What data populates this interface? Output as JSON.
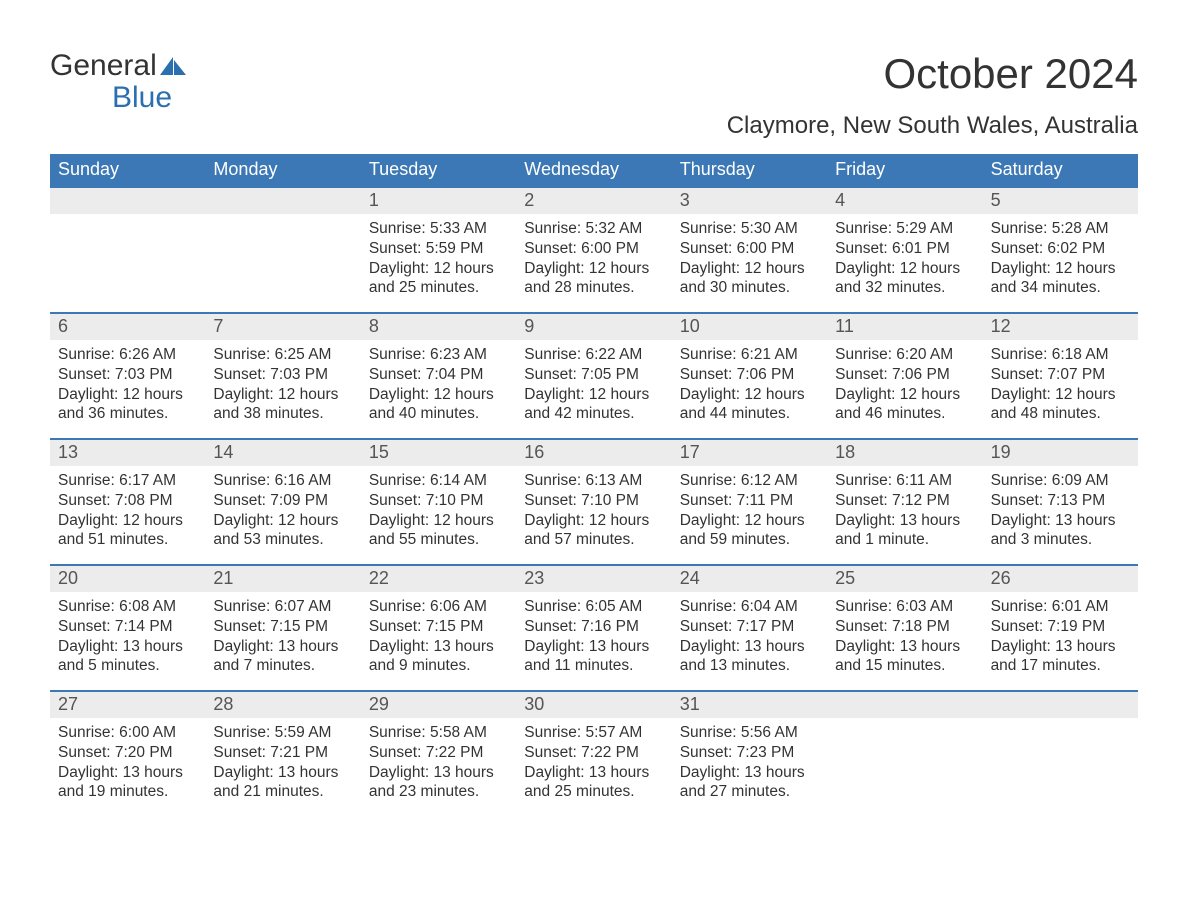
{
  "logo": {
    "word1": "General",
    "word2": "Blue",
    "icon_color": "#2c6fb0"
  },
  "title": "October 2024",
  "location": "Claymore, New South Wales, Australia",
  "colors": {
    "header_bg": "#3b78b5",
    "header_text": "#ffffff",
    "daynum_bg": "#ececec",
    "row_border": "#3b78b5",
    "body_text": "#333333",
    "accent": "#2c6fb0"
  },
  "days_of_week": [
    "Sunday",
    "Monday",
    "Tuesday",
    "Wednesday",
    "Thursday",
    "Friday",
    "Saturday"
  ],
  "weeks": [
    [
      null,
      null,
      {
        "n": "1",
        "sr": "Sunrise: 5:33 AM",
        "ss": "Sunset: 5:59 PM",
        "d1": "Daylight: 12 hours",
        "d2": "and 25 minutes."
      },
      {
        "n": "2",
        "sr": "Sunrise: 5:32 AM",
        "ss": "Sunset: 6:00 PM",
        "d1": "Daylight: 12 hours",
        "d2": "and 28 minutes."
      },
      {
        "n": "3",
        "sr": "Sunrise: 5:30 AM",
        "ss": "Sunset: 6:00 PM",
        "d1": "Daylight: 12 hours",
        "d2": "and 30 minutes."
      },
      {
        "n": "4",
        "sr": "Sunrise: 5:29 AM",
        "ss": "Sunset: 6:01 PM",
        "d1": "Daylight: 12 hours",
        "d2": "and 32 minutes."
      },
      {
        "n": "5",
        "sr": "Sunrise: 5:28 AM",
        "ss": "Sunset: 6:02 PM",
        "d1": "Daylight: 12 hours",
        "d2": "and 34 minutes."
      }
    ],
    [
      {
        "n": "6",
        "sr": "Sunrise: 6:26 AM",
        "ss": "Sunset: 7:03 PM",
        "d1": "Daylight: 12 hours",
        "d2": "and 36 minutes."
      },
      {
        "n": "7",
        "sr": "Sunrise: 6:25 AM",
        "ss": "Sunset: 7:03 PM",
        "d1": "Daylight: 12 hours",
        "d2": "and 38 minutes."
      },
      {
        "n": "8",
        "sr": "Sunrise: 6:23 AM",
        "ss": "Sunset: 7:04 PM",
        "d1": "Daylight: 12 hours",
        "d2": "and 40 minutes."
      },
      {
        "n": "9",
        "sr": "Sunrise: 6:22 AM",
        "ss": "Sunset: 7:05 PM",
        "d1": "Daylight: 12 hours",
        "d2": "and 42 minutes."
      },
      {
        "n": "10",
        "sr": "Sunrise: 6:21 AM",
        "ss": "Sunset: 7:06 PM",
        "d1": "Daylight: 12 hours",
        "d2": "and 44 minutes."
      },
      {
        "n": "11",
        "sr": "Sunrise: 6:20 AM",
        "ss": "Sunset: 7:06 PM",
        "d1": "Daylight: 12 hours",
        "d2": "and 46 minutes."
      },
      {
        "n": "12",
        "sr": "Sunrise: 6:18 AM",
        "ss": "Sunset: 7:07 PM",
        "d1": "Daylight: 12 hours",
        "d2": "and 48 minutes."
      }
    ],
    [
      {
        "n": "13",
        "sr": "Sunrise: 6:17 AM",
        "ss": "Sunset: 7:08 PM",
        "d1": "Daylight: 12 hours",
        "d2": "and 51 minutes."
      },
      {
        "n": "14",
        "sr": "Sunrise: 6:16 AM",
        "ss": "Sunset: 7:09 PM",
        "d1": "Daylight: 12 hours",
        "d2": "and 53 minutes."
      },
      {
        "n": "15",
        "sr": "Sunrise: 6:14 AM",
        "ss": "Sunset: 7:10 PM",
        "d1": "Daylight: 12 hours",
        "d2": "and 55 minutes."
      },
      {
        "n": "16",
        "sr": "Sunrise: 6:13 AM",
        "ss": "Sunset: 7:10 PM",
        "d1": "Daylight: 12 hours",
        "d2": "and 57 minutes."
      },
      {
        "n": "17",
        "sr": "Sunrise: 6:12 AM",
        "ss": "Sunset: 7:11 PM",
        "d1": "Daylight: 12 hours",
        "d2": "and 59 minutes."
      },
      {
        "n": "18",
        "sr": "Sunrise: 6:11 AM",
        "ss": "Sunset: 7:12 PM",
        "d1": "Daylight: 13 hours",
        "d2": "and 1 minute."
      },
      {
        "n": "19",
        "sr": "Sunrise: 6:09 AM",
        "ss": "Sunset: 7:13 PM",
        "d1": "Daylight: 13 hours",
        "d2": "and 3 minutes."
      }
    ],
    [
      {
        "n": "20",
        "sr": "Sunrise: 6:08 AM",
        "ss": "Sunset: 7:14 PM",
        "d1": "Daylight: 13 hours",
        "d2": "and 5 minutes."
      },
      {
        "n": "21",
        "sr": "Sunrise: 6:07 AM",
        "ss": "Sunset: 7:15 PM",
        "d1": "Daylight: 13 hours",
        "d2": "and 7 minutes."
      },
      {
        "n": "22",
        "sr": "Sunrise: 6:06 AM",
        "ss": "Sunset: 7:15 PM",
        "d1": "Daylight: 13 hours",
        "d2": "and 9 minutes."
      },
      {
        "n": "23",
        "sr": "Sunrise: 6:05 AM",
        "ss": "Sunset: 7:16 PM",
        "d1": "Daylight: 13 hours",
        "d2": "and 11 minutes."
      },
      {
        "n": "24",
        "sr": "Sunrise: 6:04 AM",
        "ss": "Sunset: 7:17 PM",
        "d1": "Daylight: 13 hours",
        "d2": "and 13 minutes."
      },
      {
        "n": "25",
        "sr": "Sunrise: 6:03 AM",
        "ss": "Sunset: 7:18 PM",
        "d1": "Daylight: 13 hours",
        "d2": "and 15 minutes."
      },
      {
        "n": "26",
        "sr": "Sunrise: 6:01 AM",
        "ss": "Sunset: 7:19 PM",
        "d1": "Daylight: 13 hours",
        "d2": "and 17 minutes."
      }
    ],
    [
      {
        "n": "27",
        "sr": "Sunrise: 6:00 AM",
        "ss": "Sunset: 7:20 PM",
        "d1": "Daylight: 13 hours",
        "d2": "and 19 minutes."
      },
      {
        "n": "28",
        "sr": "Sunrise: 5:59 AM",
        "ss": "Sunset: 7:21 PM",
        "d1": "Daylight: 13 hours",
        "d2": "and 21 minutes."
      },
      {
        "n": "29",
        "sr": "Sunrise: 5:58 AM",
        "ss": "Sunset: 7:22 PM",
        "d1": "Daylight: 13 hours",
        "d2": "and 23 minutes."
      },
      {
        "n": "30",
        "sr": "Sunrise: 5:57 AM",
        "ss": "Sunset: 7:22 PM",
        "d1": "Daylight: 13 hours",
        "d2": "and 25 minutes."
      },
      {
        "n": "31",
        "sr": "Sunrise: 5:56 AM",
        "ss": "Sunset: 7:23 PM",
        "d1": "Daylight: 13 hours",
        "d2": "and 27 minutes."
      },
      null,
      null
    ]
  ]
}
